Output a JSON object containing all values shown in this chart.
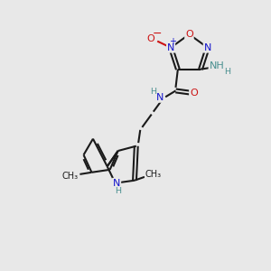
{
  "bg_color": "#e8e8e8",
  "bond_color": "#1a1a1a",
  "bond_width": 1.5,
  "atom_colors": {
    "N": "#1414cc",
    "O": "#cc1414",
    "H": "#4a9090",
    "C": "#1a1a1a"
  },
  "font_size": 8.0,
  "xlim": [
    0,
    10
  ],
  "ylim": [
    0,
    10
  ]
}
